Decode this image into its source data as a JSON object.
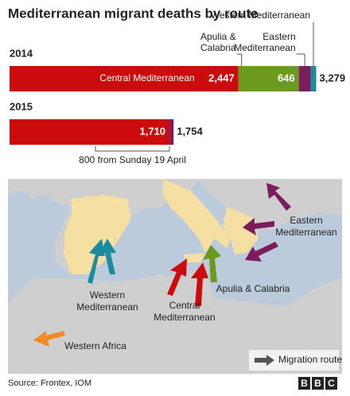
{
  "chart_data": {
    "type": "stacked-bar-horizontal",
    "title": "Mediterranean migrant deaths by route",
    "categories": [
      "2014",
      "2015"
    ],
    "series": [
      {
        "name": "Central Mediterranean",
        "color": "#cc0c0c",
        "values": [
          2447,
          1710
        ],
        "value_labels": [
          "2,447",
          "1,710"
        ]
      },
      {
        "name": "Apulia & Calabria",
        "color": "#6b9a1e",
        "values": [
          646,
          null
        ],
        "value_labels": [
          "646",
          null
        ]
      },
      {
        "name": "Eastern Mediterranean",
        "color": "#7b1d5c",
        "values": [
          126,
          44
        ]
      },
      {
        "name": "Western Mediterranean",
        "color": "#1a8c9c",
        "values": [
          60,
          null
        ]
      }
    ],
    "totals": [
      3279,
      1754
    ],
    "total_labels": [
      "3,279",
      "1,754"
    ],
    "xlim": [
      0,
      3300
    ],
    "annotation": "800 from Sunday 19 April"
  },
  "map": {
    "labels": [
      [
        "Western",
        "Mediterranean"
      ],
      [
        "Central",
        "Mediterranean"
      ],
      [
        "Apulia & Calabria"
      ],
      [
        "Eastern",
        "Mediterranean"
      ],
      [
        "Western Africa"
      ]
    ],
    "legend": "Migration route"
  },
  "source": "Source: Frontex, IOM",
  "logo": [
    "B",
    "B",
    "C"
  ]
}
